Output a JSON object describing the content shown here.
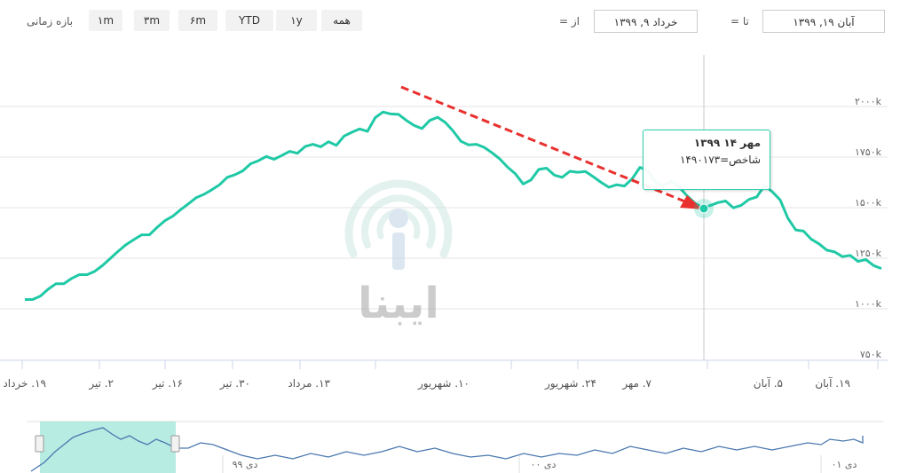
{
  "range_selector": {
    "label": "بازه زمانی",
    "buttons": [
      "۱m",
      "۳m",
      "۶m",
      "YTD",
      "۱y",
      "همه"
    ]
  },
  "date_range": {
    "from_label": "از =",
    "from_value": "خرداد ۹, ۱۳۹۹",
    "to_label": "تا =",
    "to_value": "آبان ۱۹, ۱۳۹۹"
  },
  "tooltip": {
    "date": "مهر ۱۴ ۱۳۹۹",
    "series_label": "شاخص=",
    "value": "۱۴۹۰۱۷۳"
  },
  "watermark": "ایبنا",
  "colors": {
    "line": "#20c9a6",
    "arrow": "#e8312f",
    "navigator_fill": "#9ee6d8",
    "navigator_line": "#4a78b0"
  },
  "navigator": {
    "labels": [
      "دی ۹۹",
      "دی ۰۰",
      "دی ۰۱"
    ]
  },
  "chart_data": {
    "type": "line",
    "title": "",
    "xlabel": "",
    "ylabel": "",
    "x_tick_labels": [
      "۱۹. خرداد",
      "۲. تیر",
      "۱۶. تیر",
      "۳۰. تیر",
      "۱۳. مرداد",
      "۱۰. شهریور",
      "۲۴. شهریور",
      "۷. مهر",
      "۵. آبان",
      "۱۹. آبان"
    ],
    "y_tick_labels": [
      "۷۵۰k",
      "۱۰۰۰k",
      "۱۲۵۰k",
      "۱۵۰۰k",
      "۱۷۵۰k",
      "۲۰۰۰k"
    ],
    "ylim": [
      750000,
      2000000
    ],
    "grid": true,
    "series": [
      {
        "name": "شاخص",
        "values": [
          1046000,
          1046000,
          1063000,
          1097000,
          1124000,
          1124000,
          1150000,
          1169000,
          1169000,
          1186000,
          1215000,
          1250000,
          1285000,
          1317000,
          1342000,
          1366000,
          1366000,
          1403000,
          1436000,
          1458000,
          1490000,
          1519000,
          1549000,
          1566000,
          1588000,
          1613000,
          1650000,
          1663000,
          1682000,
          1717000,
          1732000,
          1753000,
          1739000,
          1758000,
          1778000,
          1769000,
          1802000,
          1813000,
          1801000,
          1826000,
          1808000,
          1854000,
          1873000,
          1889000,
          1877000,
          1945000,
          1973000,
          1963000,
          1961000,
          1931000,
          1906000,
          1891000,
          1931000,
          1947000,
          1921000,
          1879000,
          1828000,
          1810000,
          1813000,
          1798000,
          1771000,
          1741000,
          1700000,
          1667000,
          1617000,
          1637000,
          1689000,
          1695000,
          1661000,
          1650000,
          1680000,
          1675000,
          1679000,
          1653000,
          1625000,
          1601000,
          1613000,
          1607000,
          1643000,
          1699000,
          1683000,
          1627000,
          1608000,
          1630000,
          1603000,
          1560000,
          1524000,
          1501000,
          1510000,
          1525000,
          1533000,
          1499000,
          1512000,
          1541000,
          1553000,
          1609000,
          1578000,
          1538000,
          1448000,
          1390000,
          1384000,
          1344000,
          1321000,
          1290000,
          1281000,
          1258000,
          1264000,
          1234000,
          1244000,
          1214000,
          1199000
        ]
      }
    ],
    "tooltip_point": {
      "x": "مهر ۱۴ ۱۳۹۹",
      "y": 1490173
    }
  }
}
